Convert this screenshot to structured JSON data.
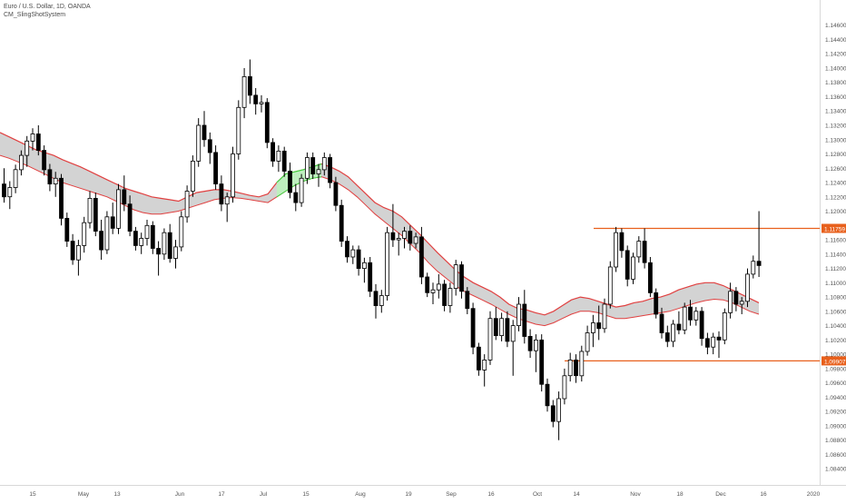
{
  "header": {
    "symbol_title": "Euro / U.S. Dollar, 1D, OANDA",
    "indicator_name": "CM_SlingShotSystem"
  },
  "colors": {
    "bull_candle": "#ffffff",
    "bear_candle": "#000000",
    "candle_outline": "#000000",
    "ema_band_down": "#e04040",
    "ema_band_up": "#3ecf3e",
    "band_fill": "#d3d3d3",
    "band_fill_up": "#bfeebf",
    "level_line": "#e8601c",
    "level_label_bg": "#e8601c",
    "axis_text": "#555555"
  },
  "chart_data": {
    "type": "candlestick",
    "title": "Euro / U.S. Dollar, 1D, OANDA",
    "indicator": "CM_SlingShotSystem",
    "ylim": [
      1.0825,
      1.1485
    ],
    "y_ticks": [
      "1.14600",
      "1.14400",
      "1.14200",
      "1.14000",
      "1.13800",
      "1.13600",
      "1.13400",
      "1.13200",
      "1.13000",
      "1.12800",
      "1.12600",
      "1.12400",
      "1.12200",
      "1.12000",
      "1.11800",
      "1.11600",
      "1.11400",
      "1.11200",
      "1.11000",
      "1.10800",
      "1.10600",
      "1.10400",
      "1.10200",
      "1.10000",
      "1.09800",
      "1.09600",
      "1.09400",
      "1.09200",
      "1.09000",
      "1.08800",
      "1.08600",
      "1.08400"
    ],
    "x_labels": [
      "15",
      "May",
      "13",
      "Jun",
      "17",
      "Jul",
      "15",
      "Aug",
      "19",
      "Sep",
      "16",
      "Oct",
      "14",
      "Nov",
      "18",
      "Dec",
      "16",
      "2020"
    ],
    "levels": [
      {
        "label": "1.11759",
        "value": 1.11759
      },
      {
        "label": "1.09907",
        "value": 1.09907
      }
    ],
    "candles": [
      [
        1.1238,
        1.126,
        1.1212,
        1.122
      ],
      [
        1.122,
        1.1242,
        1.1203,
        1.1233
      ],
      [
        1.1233,
        1.1265,
        1.1225,
        1.1258
      ],
      [
        1.1258,
        1.1285,
        1.125,
        1.1278
      ],
      [
        1.1278,
        1.1305,
        1.1262,
        1.1298
      ],
      [
        1.1298,
        1.1316,
        1.1285,
        1.1308
      ],
      [
        1.1308,
        1.132,
        1.1278,
        1.1285
      ],
      [
        1.1285,
        1.1292,
        1.125,
        1.1258
      ],
      [
        1.1258,
        1.1266,
        1.1228,
        1.1238
      ],
      [
        1.1238,
        1.1255,
        1.122,
        1.1246
      ],
      [
        1.1246,
        1.1252,
        1.118,
        1.119
      ],
      [
        1.119,
        1.1198,
        1.115,
        1.1158
      ],
      [
        1.1158,
        1.1168,
        1.1125,
        1.1132
      ],
      [
        1.1132,
        1.116,
        1.111,
        1.1152
      ],
      [
        1.1152,
        1.1192,
        1.1142,
        1.1184
      ],
      [
        1.1184,
        1.1228,
        1.1176,
        1.1218
      ],
      [
        1.1218,
        1.1226,
        1.1165,
        1.1172
      ],
      [
        1.1172,
        1.1188,
        1.1132,
        1.1146
      ],
      [
        1.1146,
        1.12,
        1.114,
        1.1192
      ],
      [
        1.1192,
        1.1212,
        1.1168,
        1.1176
      ],
      [
        1.1176,
        1.1238,
        1.1168,
        1.123
      ],
      [
        1.123,
        1.125,
        1.12,
        1.121
      ],
      [
        1.121,
        1.1222,
        1.1165,
        1.1172
      ],
      [
        1.1172,
        1.1178,
        1.1145,
        1.1152
      ],
      [
        1.1152,
        1.117,
        1.114,
        1.1162
      ],
      [
        1.1162,
        1.1188,
        1.1152,
        1.118
      ],
      [
        1.118,
        1.1186,
        1.114,
        1.1148
      ],
      [
        1.1148,
        1.1158,
        1.111,
        1.114
      ],
      [
        1.114,
        1.1176,
        1.1132,
        1.117
      ],
      [
        1.117,
        1.1182,
        1.1128,
        1.1134
      ],
      [
        1.1134,
        1.116,
        1.112,
        1.115
      ],
      [
        1.115,
        1.12,
        1.1144,
        1.1192
      ],
      [
        1.1192,
        1.1236,
        1.1184,
        1.1228
      ],
      [
        1.1228,
        1.1278,
        1.122,
        1.127
      ],
      [
        1.127,
        1.133,
        1.1262,
        1.132
      ],
      [
        1.132,
        1.134,
        1.129,
        1.13
      ],
      [
        1.13,
        1.131,
        1.1266,
        1.1282
      ],
      [
        1.1282,
        1.1292,
        1.123,
        1.1238
      ],
      [
        1.1238,
        1.125,
        1.12,
        1.121
      ],
      [
        1.121,
        1.1226,
        1.1185,
        1.122
      ],
      [
        1.122,
        1.129,
        1.1212,
        1.128
      ],
      [
        1.128,
        1.1355,
        1.1272,
        1.1345
      ],
      [
        1.1345,
        1.14,
        1.133,
        1.1388
      ],
      [
        1.1388,
        1.1412,
        1.135,
        1.1362
      ],
      [
        1.1362,
        1.1372,
        1.1335,
        1.135
      ],
      [
        1.135,
        1.1362,
        1.1338,
        1.1352
      ],
      [
        1.1352,
        1.1358,
        1.1288,
        1.1296
      ],
      [
        1.1296,
        1.1302,
        1.1262,
        1.127
      ],
      [
        1.127,
        1.1292,
        1.1255,
        1.1284
      ],
      [
        1.1284,
        1.129,
        1.1248,
        1.1256
      ],
      [
        1.1256,
        1.1268,
        1.1218,
        1.1226
      ],
      [
        1.1226,
        1.1238,
        1.12,
        1.1212
      ],
      [
        1.1212,
        1.1252,
        1.1206,
        1.1246
      ],
      [
        1.1246,
        1.1282,
        1.1238,
        1.1275
      ],
      [
        1.1275,
        1.1282,
        1.1245,
        1.1252
      ],
      [
        1.1252,
        1.1266,
        1.1234,
        1.1258
      ],
      [
        1.1258,
        1.1282,
        1.125,
        1.1275
      ],
      [
        1.1275,
        1.128,
        1.1232,
        1.124
      ],
      [
        1.124,
        1.1248,
        1.12,
        1.1208
      ],
      [
        1.1208,
        1.1216,
        1.115,
        1.1158
      ],
      [
        1.1158,
        1.1165,
        1.1128,
        1.1136
      ],
      [
        1.1136,
        1.1152,
        1.1126,
        1.1146
      ],
      [
        1.1146,
        1.1152,
        1.111,
        1.112
      ],
      [
        1.112,
        1.1135,
        1.11,
        1.1128
      ],
      [
        1.1128,
        1.1136,
        1.108,
        1.1088
      ],
      [
        1.1088,
        1.1098,
        1.105,
        1.1068
      ],
      [
        1.1068,
        1.109,
        1.1058,
        1.1082
      ],
      [
        1.1082,
        1.1178,
        1.1075,
        1.117
      ],
      [
        1.117,
        1.121,
        1.115,
        1.116
      ],
      [
        1.116,
        1.117,
        1.1138,
        1.1162
      ],
      [
        1.1162,
        1.1178,
        1.1148,
        1.1172
      ],
      [
        1.1172,
        1.118,
        1.1145,
        1.1155
      ],
      [
        1.1155,
        1.117,
        1.1148,
        1.1164
      ],
      [
        1.1164,
        1.1178,
        1.1098,
        1.1108
      ],
      [
        1.1108,
        1.1114,
        1.108,
        1.1086
      ],
      [
        1.1086,
        1.11,
        1.107,
        1.109
      ],
      [
        1.109,
        1.1112,
        1.1078,
        1.1098
      ],
      [
        1.1098,
        1.1104,
        1.106,
        1.1068
      ],
      [
        1.1068,
        1.11,
        1.1058,
        1.1092
      ],
      [
        1.1092,
        1.1132,
        1.1082,
        1.1125
      ],
      [
        1.1125,
        1.113,
        1.1078,
        1.1088
      ],
      [
        1.1088,
        1.1094,
        1.1056,
        1.1064
      ],
      [
        1.1064,
        1.1072,
        1.1,
        1.101
      ],
      [
        1.101,
        1.1016,
        1.097,
        1.0978
      ],
      [
        1.0978,
        1.1,
        1.0955,
        1.0992
      ],
      [
        1.0992,
        1.106,
        1.0985,
        1.105
      ],
      [
        1.105,
        1.1066,
        1.102,
        1.1026
      ],
      [
        1.1026,
        1.1058,
        1.1018,
        1.105
      ],
      [
        1.105,
        1.106,
        1.101,
        1.1018
      ],
      [
        1.1018,
        1.1048,
        1.097,
        1.104
      ],
      [
        1.104,
        1.108,
        1.1032,
        1.107
      ],
      [
        1.107,
        1.109,
        1.1015,
        1.1025
      ],
      [
        1.1025,
        1.1035,
        1.0995,
        1.1005
      ],
      [
        1.1005,
        1.1028,
        1.0975,
        1.102
      ],
      [
        1.102,
        1.1028,
        1.0948,
        1.0958
      ],
      [
        1.0958,
        1.0966,
        1.092,
        1.0928
      ],
      [
        1.0928,
        1.0936,
        1.0898,
        1.0906
      ],
      [
        1.0906,
        1.0948,
        1.088,
        1.0938
      ],
      [
        1.0938,
        1.098,
        1.093,
        1.097
      ],
      [
        1.097,
        1.1002,
        1.0962,
        1.0992
      ],
      [
        1.0992,
        1.1,
        1.096,
        1.097
      ],
      [
        1.097,
        1.1012,
        1.0962,
        1.1004
      ],
      [
        1.1004,
        1.104,
        1.0998,
        1.103
      ],
      [
        1.103,
        1.1055,
        1.101,
        1.1044
      ],
      [
        1.1044,
        1.1068,
        1.102,
        1.1036
      ],
      [
        1.1036,
        1.1078,
        1.103,
        1.107
      ],
      [
        1.107,
        1.113,
        1.1064,
        1.1122
      ],
      [
        1.1122,
        1.1178,
        1.1115,
        1.117
      ],
      [
        1.117,
        1.1176,
        1.1135,
        1.1145
      ],
      [
        1.1145,
        1.1152,
        1.1095,
        1.1105
      ],
      [
        1.1105,
        1.1142,
        1.1098,
        1.1136
      ],
      [
        1.1136,
        1.1165,
        1.1128,
        1.1158
      ],
      [
        1.1158,
        1.1176,
        1.112,
        1.1128
      ],
      [
        1.1128,
        1.1136,
        1.108,
        1.1086
      ],
      [
        1.1086,
        1.1092,
        1.105,
        1.1056
      ],
      [
        1.1056,
        1.1065,
        1.1022,
        1.103
      ],
      [
        1.103,
        1.104,
        1.101,
        1.1018
      ],
      [
        1.1018,
        1.1048,
        1.101,
        1.1042
      ],
      [
        1.1042,
        1.106,
        1.1028,
        1.1034
      ],
      [
        1.1034,
        1.1072,
        1.1028,
        1.1066
      ],
      [
        1.1066,
        1.1076,
        1.104,
        1.1048
      ],
      [
        1.1048,
        1.1066,
        1.104,
        1.106
      ],
      [
        1.106,
        1.1066,
        1.1012,
        1.1022
      ],
      [
        1.1022,
        1.103,
        1.1,
        1.101
      ],
      [
        1.101,
        1.103,
        1.1,
        1.1024
      ],
      [
        1.1024,
        1.1032,
        1.0995,
        1.102
      ],
      [
        1.102,
        1.1064,
        1.1014,
        1.1058
      ],
      [
        1.1058,
        1.11,
        1.105,
        1.1088
      ],
      [
        1.1088,
        1.1094,
        1.106,
        1.107
      ],
      [
        1.107,
        1.108,
        1.1056,
        1.1074
      ],
      [
        1.1074,
        1.112,
        1.1066,
        1.1112
      ],
      [
        1.1112,
        1.1138,
        1.1106,
        1.113
      ],
      [
        1.113,
        1.12,
        1.1108,
        1.1124
      ]
    ],
    "ema_band": {
      "fast": [
        1.131,
        1.1304,
        1.1298,
        1.1292,
        1.1286,
        1.1282,
        1.1278,
        1.1272,
        1.1267,
        1.1262,
        1.1256,
        1.125,
        1.1244,
        1.1238,
        1.1232,
        1.1228,
        1.1224,
        1.122,
        1.1218,
        1.1216,
        1.1214,
        1.122,
        1.1226,
        1.1228,
        1.123,
        1.123,
        1.1228,
        1.1225,
        1.1222,
        1.122,
        1.1224,
        1.124,
        1.1252,
        1.1255,
        1.1258,
        1.1262,
        1.1266,
        1.1262,
        1.1256,
        1.1248,
        1.1236,
        1.1224,
        1.1212,
        1.1205,
        1.12,
        1.1192,
        1.118,
        1.1168,
        1.1155,
        1.1142,
        1.113,
        1.1118,
        1.1108,
        1.11,
        1.1094,
        1.1088,
        1.108,
        1.107,
        1.1064,
        1.1062,
        1.1058,
        1.1055,
        1.106,
        1.1068,
        1.1076,
        1.108,
        1.1078,
        1.1074,
        1.107,
        1.1066,
        1.1068,
        1.1072,
        1.1074,
        1.1078,
        1.108,
        1.1084,
        1.109,
        1.1094,
        1.1098,
        1.11,
        1.11,
        1.1096,
        1.109,
        1.1084,
        1.1078,
        1.1072
      ],
      "slow": [
        1.1278,
        1.1274,
        1.1269,
        1.1264,
        1.1258,
        1.1252,
        1.1246,
        1.124,
        1.1236,
        1.1232,
        1.1228,
        1.1224,
        1.122,
        1.1214,
        1.1208,
        1.1202,
        1.1198,
        1.1196,
        1.1196,
        1.1198,
        1.12,
        1.1204,
        1.1208,
        1.1212,
        1.1216,
        1.1218,
        1.1219,
        1.1218,
        1.1216,
        1.1214,
        1.1212,
        1.122,
        1.1228,
        1.1236,
        1.1242,
        1.1246,
        1.1248,
        1.1244,
        1.1238,
        1.123,
        1.122,
        1.1208,
        1.1196,
        1.1186,
        1.1176,
        1.1166,
        1.1154,
        1.1142,
        1.1128,
        1.1116,
        1.1106,
        1.1096,
        1.1088,
        1.1082,
        1.1076,
        1.107,
        1.1063,
        1.1056,
        1.105,
        1.1046,
        1.1042,
        1.104,
        1.1044,
        1.105,
        1.1056,
        1.106,
        1.106,
        1.1058,
        1.1054,
        1.105,
        1.105,
        1.1052,
        1.1054,
        1.1056,
        1.1058,
        1.106,
        1.1064,
        1.1068,
        1.1072,
        1.1075,
        1.1077,
        1.1076,
        1.1072,
        1.1066,
        1.106,
        1.1056
      ],
      "fast_pts": 86
    }
  }
}
